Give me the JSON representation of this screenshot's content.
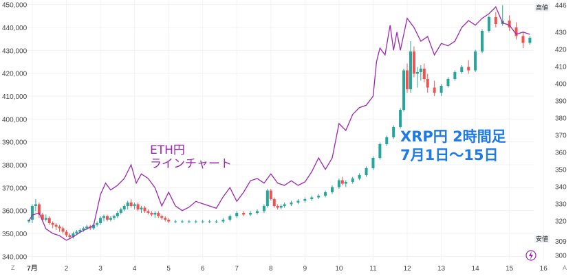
{
  "chart_data": {
    "type": "candlestick",
    "annotations": {
      "eth_line": [
        "ETH円",
        "ラインチャート"
      ],
      "xrp_title": [
        "XRP円 2時間足",
        "7月1日〜15日"
      ]
    },
    "x_ticks": [
      "7月",
      "2",
      "3",
      "4",
      "5",
      "6",
      "7",
      "8",
      "9",
      "10",
      "11",
      "12",
      "13",
      "14",
      "15",
      "16"
    ],
    "left_axis": {
      "ticks": [
        "450,000",
        "440,000",
        "430,000",
        "420,000",
        "410,000",
        "400,000",
        "390,000",
        "380,000",
        "370,000",
        "360,000",
        "350,000",
        "340,000"
      ],
      "ylim": [
        338000,
        452000
      ]
    },
    "right_axis": {
      "ticks": [
        "446",
        "430",
        "420",
        "410",
        "400",
        "390",
        "380",
        "370",
        "360",
        "350",
        "340",
        "330",
        "320",
        "309",
        "300"
      ],
      "ylim": [
        297,
        449
      ]
    },
    "high_label": {
      "text": "高値",
      "value": "446"
    },
    "low_label": {
      "text": "安値",
      "value": "309"
    },
    "corner_labels": {
      "bottom_left": "Z",
      "bottom_right": "A"
    },
    "colors": {
      "up": "#26a69a",
      "down": "#ef5350",
      "eth_line": "#9c27b0",
      "annotation_blue": "#1e7ae8"
    },
    "eth_line": [
      [
        0.9,
        355500
      ],
      [
        1.0,
        358000
      ],
      [
        1.2,
        359000
      ],
      [
        1.4,
        352000
      ],
      [
        1.6,
        350000
      ],
      [
        1.8,
        349000
      ],
      [
        2.0,
        347000
      ],
      [
        2.2,
        348500
      ],
      [
        2.4,
        350500
      ],
      [
        2.6,
        352000
      ],
      [
        2.8,
        353500
      ],
      [
        3.0,
        367000
      ],
      [
        3.15,
        372000
      ],
      [
        3.3,
        369000
      ],
      [
        3.5,
        371000
      ],
      [
        3.7,
        374000
      ],
      [
        3.9,
        380000
      ],
      [
        4.05,
        372000
      ],
      [
        4.2,
        376000
      ],
      [
        4.4,
        374000
      ],
      [
        4.6,
        370000
      ],
      [
        4.8,
        362000
      ],
      [
        5.0,
        368000
      ],
      [
        5.2,
        362000
      ],
      [
        5.4,
        360000
      ],
      [
        5.6,
        361500
      ],
      [
        5.8,
        364000
      ],
      [
        6.0,
        363000
      ],
      [
        6.2,
        362000
      ],
      [
        6.4,
        361000
      ],
      [
        6.6,
        366000
      ],
      [
        6.8,
        370000
      ],
      [
        7.0,
        364000
      ],
      [
        7.2,
        368000
      ],
      [
        7.4,
        373000
      ],
      [
        7.6,
        374000
      ],
      [
        7.8,
        372000
      ],
      [
        8.0,
        376000
      ],
      [
        8.2,
        372000
      ],
      [
        8.4,
        371000
      ],
      [
        8.6,
        373000
      ],
      [
        8.8,
        371000
      ],
      [
        9.0,
        372500
      ],
      [
        9.2,
        377000
      ],
      [
        9.4,
        383000
      ],
      [
        9.6,
        378000
      ],
      [
        9.8,
        383000
      ],
      [
        10.0,
        398000
      ],
      [
        10.2,
        395000
      ],
      [
        10.4,
        402000
      ],
      [
        10.6,
        405000
      ],
      [
        10.8,
        406000
      ],
      [
        11.0,
        410000
      ],
      [
        11.1,
        425000
      ],
      [
        11.2,
        431000
      ],
      [
        11.35,
        428000
      ],
      [
        11.5,
        441000
      ],
      [
        11.6,
        430000
      ],
      [
        11.7,
        438000
      ],
      [
        11.8,
        430000
      ],
      [
        12.0,
        444000
      ],
      [
        12.2,
        440000
      ],
      [
        12.4,
        434000
      ],
      [
        12.6,
        436000
      ],
      [
        12.8,
        428000
      ],
      [
        13.0,
        433000
      ],
      [
        13.2,
        432000
      ],
      [
        13.4,
        434000
      ],
      [
        13.6,
        440000
      ],
      [
        13.8,
        443000
      ],
      [
        14.0,
        441000
      ],
      [
        14.2,
        444000
      ],
      [
        14.4,
        446000
      ],
      [
        14.6,
        449000
      ],
      [
        14.8,
        442000
      ],
      [
        15.0,
        441000
      ],
      [
        15.2,
        437000
      ],
      [
        15.4,
        438000
      ],
      [
        15.6,
        437000
      ]
    ],
    "xrp_candles": [
      [
        0.9,
        320,
        321,
        319,
        321
      ],
      [
        1.0,
        321,
        330,
        319,
        329
      ],
      [
        1.1,
        329,
        333,
        326,
        330
      ],
      [
        1.2,
        330,
        331,
        322,
        324
      ],
      [
        1.3,
        324,
        325,
        320,
        321
      ],
      [
        1.4,
        321,
        324,
        320,
        322
      ],
      [
        1.5,
        322,
        323,
        318,
        319
      ],
      [
        1.6,
        319,
        320,
        316,
        318
      ],
      [
        1.7,
        318,
        319,
        315,
        317
      ],
      [
        1.8,
        317,
        318,
        314,
        316
      ],
      [
        1.9,
        316,
        317,
        313,
        314
      ],
      [
        2.0,
        314,
        315,
        311,
        312
      ],
      [
        2.1,
        312,
        313,
        310,
        311
      ],
      [
        2.2,
        311,
        314,
        310,
        313
      ],
      [
        2.3,
        313,
        315,
        312,
        314
      ],
      [
        2.4,
        314,
        316,
        313,
        315
      ],
      [
        2.5,
        315,
        317,
        314,
        316
      ],
      [
        2.6,
        316,
        318,
        315,
        317
      ],
      [
        2.7,
        317,
        318,
        315,
        316
      ],
      [
        2.8,
        316,
        319,
        315,
        318
      ],
      [
        2.9,
        318,
        320,
        317,
        319
      ],
      [
        3.0,
        319,
        323,
        318,
        322
      ],
      [
        3.1,
        322,
        324,
        320,
        323
      ],
      [
        3.2,
        323,
        324,
        320,
        321
      ],
      [
        3.3,
        321,
        323,
        320,
        322
      ],
      [
        3.4,
        322,
        324,
        321,
        323
      ],
      [
        3.5,
        323,
        326,
        322,
        325
      ],
      [
        3.6,
        325,
        328,
        324,
        327
      ],
      [
        3.7,
        327,
        330,
        326,
        329
      ],
      [
        3.8,
        329,
        332,
        327,
        331
      ],
      [
        3.9,
        331,
        333,
        328,
        329
      ],
      [
        4.0,
        329,
        331,
        327,
        330
      ],
      [
        4.1,
        330,
        331,
        326,
        327
      ],
      [
        4.2,
        327,
        329,
        325,
        328
      ],
      [
        4.3,
        328,
        329,
        325,
        326
      ],
      [
        4.4,
        326,
        327,
        324,
        325
      ],
      [
        4.5,
        325,
        326,
        323,
        324
      ],
      [
        4.6,
        324,
        326,
        322,
        325
      ],
      [
        4.7,
        325,
        326,
        322,
        323
      ],
      [
        4.8,
        323,
        324,
        321,
        322
      ],
      [
        4.9,
        322,
        323,
        320,
        321
      ],
      [
        5.0,
        321,
        322,
        319,
        320
      ],
      [
        5.2,
        320,
        321,
        319,
        320
      ],
      [
        5.4,
        320,
        321,
        319,
        320
      ],
      [
        5.6,
        320,
        321,
        319,
        320
      ],
      [
        5.8,
        320,
        321,
        319,
        320
      ],
      [
        6.0,
        320,
        321,
        319,
        320
      ],
      [
        6.2,
        320,
        321,
        319,
        320
      ],
      [
        6.4,
        320,
        321,
        319,
        320
      ],
      [
        6.6,
        320,
        322,
        319,
        321
      ],
      [
        6.8,
        321,
        324,
        320,
        323
      ],
      [
        7.0,
        323,
        326,
        322,
        325
      ],
      [
        7.2,
        325,
        326,
        323,
        324
      ],
      [
        7.4,
        324,
        326,
        323,
        325
      ],
      [
        7.6,
        325,
        327,
        324,
        326
      ],
      [
        7.8,
        326,
        330,
        325,
        329
      ],
      [
        7.9,
        329,
        339,
        328,
        338
      ],
      [
        8.0,
        338,
        339,
        332,
        333
      ],
      [
        8.1,
        333,
        334,
        328,
        329
      ],
      [
        8.2,
        329,
        330,
        327,
        328
      ],
      [
        8.3,
        328,
        330,
        327,
        329
      ],
      [
        8.4,
        329,
        331,
        328,
        330
      ],
      [
        8.6,
        330,
        332,
        329,
        331
      ],
      [
        8.8,
        331,
        333,
        330,
        332
      ],
      [
        9.0,
        332,
        334,
        331,
        333
      ],
      [
        9.2,
        333,
        335,
        332,
        334
      ],
      [
        9.4,
        334,
        336,
        333,
        335
      ],
      [
        9.6,
        335,
        338,
        334,
        337
      ],
      [
        9.8,
        337,
        341,
        336,
        340
      ],
      [
        10.0,
        340,
        345,
        339,
        344
      ],
      [
        10.1,
        344,
        346,
        341,
        342
      ],
      [
        10.2,
        342,
        344,
        340,
        343
      ],
      [
        10.4,
        343,
        346,
        342,
        345
      ],
      [
        10.6,
        345,
        348,
        344,
        347
      ],
      [
        10.8,
        347,
        352,
        346,
        351
      ],
      [
        11.0,
        351,
        358,
        350,
        357
      ],
      [
        11.2,
        357,
        366,
        356,
        365
      ],
      [
        11.4,
        365,
        370,
        364,
        369
      ],
      [
        11.6,
        369,
        376,
        368,
        375
      ],
      [
        11.8,
        375,
        386,
        374,
        385
      ],
      [
        11.9,
        385,
        409,
        384,
        408
      ],
      [
        12.0,
        408,
        412,
        395,
        397
      ],
      [
        12.1,
        397,
        425,
        395,
        419
      ],
      [
        12.2,
        419,
        422,
        404,
        406
      ],
      [
        12.3,
        406,
        410,
        398,
        407
      ],
      [
        12.4,
        407,
        411,
        402,
        409
      ],
      [
        12.5,
        409,
        412,
        401,
        403
      ],
      [
        12.6,
        403,
        406,
        395,
        398
      ],
      [
        12.8,
        398,
        402,
        393,
        395
      ],
      [
        13.0,
        395,
        400,
        393,
        399
      ],
      [
        13.2,
        399,
        404,
        398,
        403
      ],
      [
        13.4,
        403,
        408,
        402,
        407
      ],
      [
        13.6,
        407,
        411,
        406,
        410
      ],
      [
        13.8,
        410,
        414,
        406,
        408
      ],
      [
        14.0,
        408,
        420,
        407,
        419
      ],
      [
        14.2,
        419,
        432,
        418,
        431
      ],
      [
        14.4,
        431,
        440,
        430,
        439
      ],
      [
        14.6,
        439,
        442,
        433,
        435
      ],
      [
        14.8,
        435,
        446,
        434,
        437
      ],
      [
        15.0,
        437,
        440,
        431,
        433
      ],
      [
        15.2,
        433,
        436,
        426,
        428
      ],
      [
        15.4,
        428,
        430,
        421,
        424
      ],
      [
        15.6,
        424,
        428,
        423,
        427
      ]
    ]
  }
}
